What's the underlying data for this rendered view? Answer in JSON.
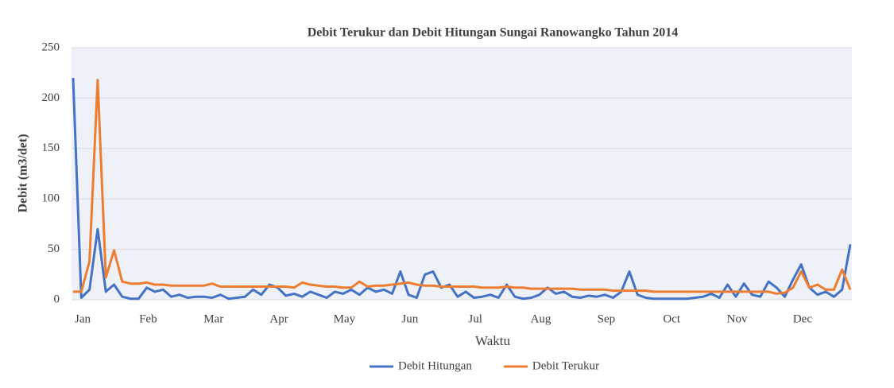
{
  "chart_data": {
    "type": "line",
    "title": "Debit Terukur dan Debit Hitungan Sungai Ranowangko Tahun 2014",
    "x_label": "Waktu",
    "y_label": "Debit (m3/det)",
    "categories": [
      "Jan",
      null,
      null,
      null,
      null,
      null,
      null,
      null,
      "Feb",
      null,
      null,
      null,
      null,
      null,
      null,
      null,
      "Mar",
      null,
      null,
      null,
      null,
      null,
      null,
      null,
      "Apr",
      null,
      null,
      null,
      null,
      null,
      null,
      null,
      "May",
      null,
      null,
      null,
      null,
      null,
      null,
      null,
      "Jun",
      null,
      null,
      null,
      null,
      null,
      null,
      null,
      "Jul",
      null,
      null,
      null,
      null,
      null,
      null,
      null,
      "Aug",
      null,
      null,
      null,
      null,
      null,
      null,
      null,
      "Sep",
      null,
      null,
      null,
      null,
      null,
      null,
      null,
      "Oct",
      null,
      null,
      null,
      null,
      null,
      null,
      null,
      "Nov",
      null,
      null,
      null,
      null,
      null,
      null,
      null,
      "Dec",
      null,
      null,
      null,
      null,
      null,
      null,
      null
    ],
    "series": [
      {
        "name": "Debit Hitungan",
        "color": "#4472c4",
        "values": [
          220,
          2,
          10,
          70,
          8,
          15,
          3,
          1,
          1,
          12,
          8,
          10,
          3,
          5,
          2,
          3,
          3,
          2,
          5,
          1,
          2,
          3,
          10,
          5,
          15,
          12,
          4,
          6,
          3,
          8,
          5,
          2,
          8,
          6,
          10,
          5,
          12,
          8,
          10,
          6,
          28,
          5,
          2,
          25,
          28,
          12,
          15,
          3,
          8,
          2,
          3,
          5,
          2,
          15,
          3,
          1,
          2,
          5,
          12,
          6,
          8,
          3,
          2,
          4,
          3,
          5,
          2,
          8,
          28,
          5,
          2,
          1,
          1,
          1,
          1,
          1,
          2,
          3,
          6,
          2,
          15,
          3,
          16,
          5,
          3,
          18,
          12,
          3,
          20,
          35,
          12,
          5,
          8,
          3,
          10,
          55
        ]
      },
      {
        "name": "Debit Terukur",
        "color": "#ed7d31",
        "values": [
          8,
          8,
          38,
          218,
          22,
          49,
          18,
          16,
          16,
          17,
          15,
          15,
          14,
          14,
          14,
          14,
          14,
          16,
          13,
          13,
          13,
          13,
          13,
          13,
          13,
          13,
          13,
          12,
          17,
          15,
          14,
          13,
          13,
          12,
          12,
          18,
          13,
          14,
          14,
          15,
          16,
          17,
          15,
          14,
          14,
          13,
          13,
          13,
          13,
          13,
          12,
          12,
          12,
          13,
          12,
          12,
          11,
          11,
          11,
          11,
          11,
          11,
          10,
          10,
          10,
          10,
          9,
          9,
          9,
          9,
          9,
          8,
          8,
          8,
          8,
          8,
          8,
          8,
          8,
          8,
          8,
          8,
          8,
          8,
          8,
          8,
          6,
          7,
          12,
          28,
          12,
          15,
          10,
          10,
          30,
          10
        ]
      }
    ],
    "ylim": [
      0,
      250
    ],
    "yticks": [
      0,
      50,
      100,
      150,
      200,
      250
    ],
    "grid": true,
    "legend": "bottom"
  }
}
